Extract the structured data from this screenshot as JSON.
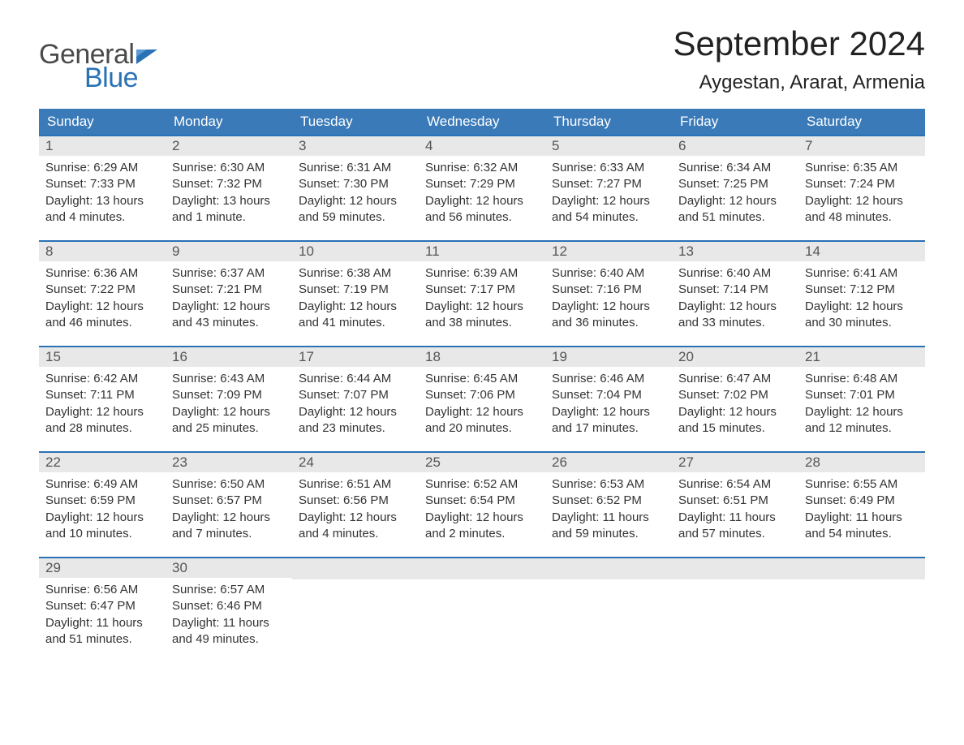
{
  "logo": {
    "text1": "General",
    "text2": "Blue",
    "flag_color": "#2a72b5"
  },
  "title": "September 2024",
  "location": "Aygestan, Ararat, Armenia",
  "day_headers": [
    "Sunday",
    "Monday",
    "Tuesday",
    "Wednesday",
    "Thursday",
    "Friday",
    "Saturday"
  ],
  "colors": {
    "header_bg": "#3a7ab8",
    "header_text": "#ffffff",
    "row_divider": "#2a72b5",
    "daynum_bg": "#e8e8e8",
    "body_text": "#333333",
    "page_bg": "#ffffff"
  },
  "fonts": {
    "title_size": 42,
    "location_size": 24,
    "header_size": 17,
    "body_size": 15
  },
  "weeks": [
    [
      {
        "n": "1",
        "sunrise": "Sunrise: 6:29 AM",
        "sunset": "Sunset: 7:33 PM",
        "dl1": "Daylight: 13 hours",
        "dl2": "and 4 minutes."
      },
      {
        "n": "2",
        "sunrise": "Sunrise: 6:30 AM",
        "sunset": "Sunset: 7:32 PM",
        "dl1": "Daylight: 13 hours",
        "dl2": "and 1 minute."
      },
      {
        "n": "3",
        "sunrise": "Sunrise: 6:31 AM",
        "sunset": "Sunset: 7:30 PM",
        "dl1": "Daylight: 12 hours",
        "dl2": "and 59 minutes."
      },
      {
        "n": "4",
        "sunrise": "Sunrise: 6:32 AM",
        "sunset": "Sunset: 7:29 PM",
        "dl1": "Daylight: 12 hours",
        "dl2": "and 56 minutes."
      },
      {
        "n": "5",
        "sunrise": "Sunrise: 6:33 AM",
        "sunset": "Sunset: 7:27 PM",
        "dl1": "Daylight: 12 hours",
        "dl2": "and 54 minutes."
      },
      {
        "n": "6",
        "sunrise": "Sunrise: 6:34 AM",
        "sunset": "Sunset: 7:25 PM",
        "dl1": "Daylight: 12 hours",
        "dl2": "and 51 minutes."
      },
      {
        "n": "7",
        "sunrise": "Sunrise: 6:35 AM",
        "sunset": "Sunset: 7:24 PM",
        "dl1": "Daylight: 12 hours",
        "dl2": "and 48 minutes."
      }
    ],
    [
      {
        "n": "8",
        "sunrise": "Sunrise: 6:36 AM",
        "sunset": "Sunset: 7:22 PM",
        "dl1": "Daylight: 12 hours",
        "dl2": "and 46 minutes."
      },
      {
        "n": "9",
        "sunrise": "Sunrise: 6:37 AM",
        "sunset": "Sunset: 7:21 PM",
        "dl1": "Daylight: 12 hours",
        "dl2": "and 43 minutes."
      },
      {
        "n": "10",
        "sunrise": "Sunrise: 6:38 AM",
        "sunset": "Sunset: 7:19 PM",
        "dl1": "Daylight: 12 hours",
        "dl2": "and 41 minutes."
      },
      {
        "n": "11",
        "sunrise": "Sunrise: 6:39 AM",
        "sunset": "Sunset: 7:17 PM",
        "dl1": "Daylight: 12 hours",
        "dl2": "and 38 minutes."
      },
      {
        "n": "12",
        "sunrise": "Sunrise: 6:40 AM",
        "sunset": "Sunset: 7:16 PM",
        "dl1": "Daylight: 12 hours",
        "dl2": "and 36 minutes."
      },
      {
        "n": "13",
        "sunrise": "Sunrise: 6:40 AM",
        "sunset": "Sunset: 7:14 PM",
        "dl1": "Daylight: 12 hours",
        "dl2": "and 33 minutes."
      },
      {
        "n": "14",
        "sunrise": "Sunrise: 6:41 AM",
        "sunset": "Sunset: 7:12 PM",
        "dl1": "Daylight: 12 hours",
        "dl2": "and 30 minutes."
      }
    ],
    [
      {
        "n": "15",
        "sunrise": "Sunrise: 6:42 AM",
        "sunset": "Sunset: 7:11 PM",
        "dl1": "Daylight: 12 hours",
        "dl2": "and 28 minutes."
      },
      {
        "n": "16",
        "sunrise": "Sunrise: 6:43 AM",
        "sunset": "Sunset: 7:09 PM",
        "dl1": "Daylight: 12 hours",
        "dl2": "and 25 minutes."
      },
      {
        "n": "17",
        "sunrise": "Sunrise: 6:44 AM",
        "sunset": "Sunset: 7:07 PM",
        "dl1": "Daylight: 12 hours",
        "dl2": "and 23 minutes."
      },
      {
        "n": "18",
        "sunrise": "Sunrise: 6:45 AM",
        "sunset": "Sunset: 7:06 PM",
        "dl1": "Daylight: 12 hours",
        "dl2": "and 20 minutes."
      },
      {
        "n": "19",
        "sunrise": "Sunrise: 6:46 AM",
        "sunset": "Sunset: 7:04 PM",
        "dl1": "Daylight: 12 hours",
        "dl2": "and 17 minutes."
      },
      {
        "n": "20",
        "sunrise": "Sunrise: 6:47 AM",
        "sunset": "Sunset: 7:02 PM",
        "dl1": "Daylight: 12 hours",
        "dl2": "and 15 minutes."
      },
      {
        "n": "21",
        "sunrise": "Sunrise: 6:48 AM",
        "sunset": "Sunset: 7:01 PM",
        "dl1": "Daylight: 12 hours",
        "dl2": "and 12 minutes."
      }
    ],
    [
      {
        "n": "22",
        "sunrise": "Sunrise: 6:49 AM",
        "sunset": "Sunset: 6:59 PM",
        "dl1": "Daylight: 12 hours",
        "dl2": "and 10 minutes."
      },
      {
        "n": "23",
        "sunrise": "Sunrise: 6:50 AM",
        "sunset": "Sunset: 6:57 PM",
        "dl1": "Daylight: 12 hours",
        "dl2": "and 7 minutes."
      },
      {
        "n": "24",
        "sunrise": "Sunrise: 6:51 AM",
        "sunset": "Sunset: 6:56 PM",
        "dl1": "Daylight: 12 hours",
        "dl2": "and 4 minutes."
      },
      {
        "n": "25",
        "sunrise": "Sunrise: 6:52 AM",
        "sunset": "Sunset: 6:54 PM",
        "dl1": "Daylight: 12 hours",
        "dl2": "and 2 minutes."
      },
      {
        "n": "26",
        "sunrise": "Sunrise: 6:53 AM",
        "sunset": "Sunset: 6:52 PM",
        "dl1": "Daylight: 11 hours",
        "dl2": "and 59 minutes."
      },
      {
        "n": "27",
        "sunrise": "Sunrise: 6:54 AM",
        "sunset": "Sunset: 6:51 PM",
        "dl1": "Daylight: 11 hours",
        "dl2": "and 57 minutes."
      },
      {
        "n": "28",
        "sunrise": "Sunrise: 6:55 AM",
        "sunset": "Sunset: 6:49 PM",
        "dl1": "Daylight: 11 hours",
        "dl2": "and 54 minutes."
      }
    ],
    [
      {
        "n": "29",
        "sunrise": "Sunrise: 6:56 AM",
        "sunset": "Sunset: 6:47 PM",
        "dl1": "Daylight: 11 hours",
        "dl2": "and 51 minutes."
      },
      {
        "n": "30",
        "sunrise": "Sunrise: 6:57 AM",
        "sunset": "Sunset: 6:46 PM",
        "dl1": "Daylight: 11 hours",
        "dl2": "and 49 minutes."
      },
      {
        "empty": true
      },
      {
        "empty": true
      },
      {
        "empty": true
      },
      {
        "empty": true
      },
      {
        "empty": true
      }
    ]
  ]
}
